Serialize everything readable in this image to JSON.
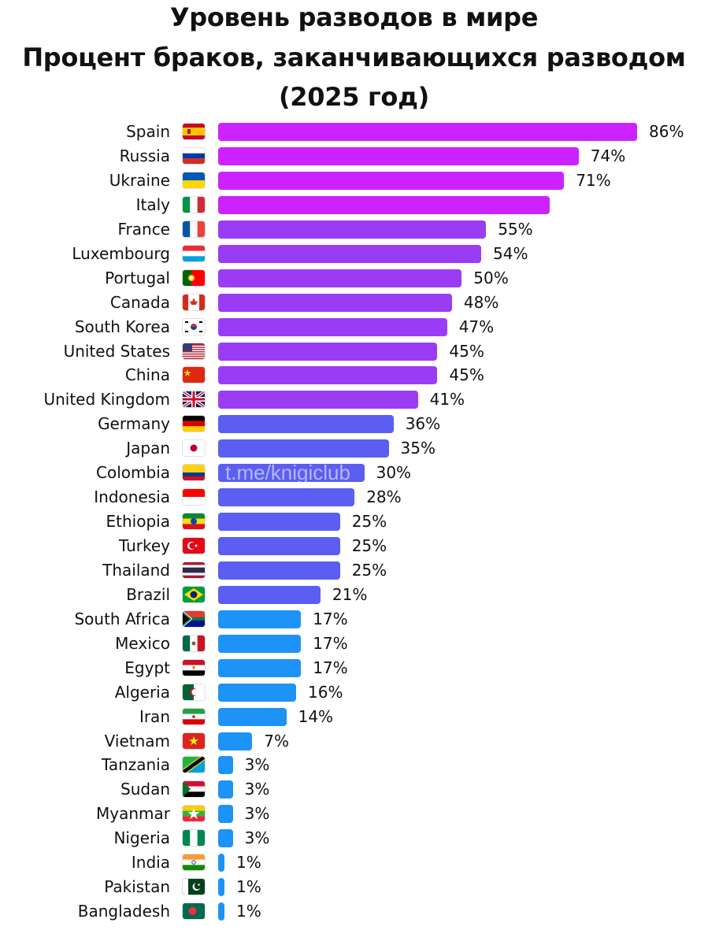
{
  "title_lines": [
    "Уровень разводов в мире",
    "Процент браков, заканчивающихся разводом",
    "(2025 год)"
  ],
  "watermark": "t.me/knigiclub",
  "colors": {
    "magenta": "#cc22ff",
    "violet": "#9b3cf5",
    "indigo": "#5b5ef0",
    "blue": "#1e93f7"
  },
  "chart_data": {
    "type": "bar",
    "orientation": "horizontal",
    "title": "Уровень разводов в мире",
    "subtitle": "Процент браков, заканчивающихся разводом (2025 год)",
    "xlabel": "",
    "ylabel": "",
    "xlim": [
      0,
      86
    ],
    "categories": [
      "Spain",
      "Russia",
      "Ukraine",
      "Italy",
      "France",
      "Luxembourg",
      "Portugal",
      "Canada",
      "South Korea",
      "United States",
      "China",
      "United Kingdom",
      "Germany",
      "Japan",
      "Colombia",
      "Indonesia",
      "Ethiopia",
      "Turkey",
      "Thailand",
      "Brazil",
      "South Africa",
      "Mexico",
      "Egypt",
      "Algeria",
      "Iran",
      "Vietnam",
      "Tanzania",
      "Sudan",
      "Myanmar",
      "Nigeria",
      "India",
      "Pakistan",
      "Bangladesh"
    ],
    "values": [
      86,
      74,
      71,
      68,
      55,
      54,
      50,
      48,
      47,
      45,
      45,
      41,
      36,
      35,
      30,
      28,
      25,
      25,
      25,
      21,
      17,
      17,
      17,
      16,
      14,
      7,
      3,
      3,
      3,
      3,
      1,
      1,
      1
    ],
    "labels": [
      "86%",
      "74%",
      "71%",
      "",
      "55%",
      "54%",
      "50%",
      "48%",
      "47%",
      "45%",
      "45%",
      "41%",
      "36%",
      "35%",
      "30%",
      "28%",
      "25%",
      "25%",
      "25%",
      "21%",
      "17%",
      "17%",
      "17%",
      "16%",
      "14%",
      "7%",
      "3%",
      "3%",
      "3%",
      "3%",
      "1%",
      "1%",
      "1%"
    ],
    "groups": [
      "magenta",
      "magenta",
      "magenta",
      "magenta",
      "violet",
      "violet",
      "violet",
      "violet",
      "violet",
      "violet",
      "violet",
      "violet",
      "indigo",
      "indigo",
      "indigo",
      "indigo",
      "indigo",
      "indigo",
      "indigo",
      "indigo",
      "blue",
      "blue",
      "blue",
      "blue",
      "blue",
      "blue",
      "blue",
      "blue",
      "blue",
      "blue",
      "blue",
      "blue",
      "blue"
    ],
    "flags": [
      "spain-flag",
      "russia-flag",
      "ukraine-flag",
      "italy-flag",
      "france-flag",
      "luxembourg-flag",
      "portugal-flag",
      "canada-flag",
      "south-korea-flag",
      "united-states-flag",
      "china-flag",
      "united-kingdom-flag",
      "germany-flag",
      "japan-flag",
      "colombia-flag",
      "indonesia-flag",
      "ethiopia-flag",
      "turkey-flag",
      "thailand-flag",
      "brazil-flag",
      "south-africa-flag",
      "mexico-flag",
      "egypt-flag",
      "algeria-flag",
      "iran-flag",
      "vietnam-flag",
      "tanzania-flag",
      "sudan-flag",
      "myanmar-flag",
      "nigeria-flag",
      "india-flag",
      "pakistan-flag",
      "bangladesh-flag"
    ]
  }
}
